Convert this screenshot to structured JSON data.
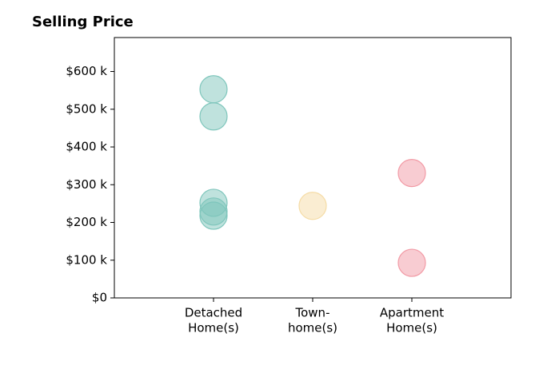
{
  "chart_data": {
    "type": "strip",
    "title": "Selling Price",
    "categories": [
      [
        "Detached",
        "Home(s)"
      ],
      [
        "Town-",
        "home(s)"
      ],
      [
        "Apartment",
        "Home(s)"
      ]
    ],
    "values": [
      [
        553000,
        481000,
        252000,
        229000,
        218000
      ],
      [
        244000
      ],
      [
        331000,
        93000
      ]
    ],
    "colors": [
      "#7fc6bc",
      "#f5dca6",
      "#f29aa5"
    ],
    "ylim": [
      0,
      690000
    ],
    "yticks": [
      {
        "value": 0,
        "label": "$0"
      },
      {
        "value": 100000,
        "label": "$100 k"
      },
      {
        "value": 200000,
        "label": "$200 k"
      },
      {
        "value": 300000,
        "label": "$300 k"
      },
      {
        "value": 400000,
        "label": "$400 k"
      },
      {
        "value": 500000,
        "label": "$500 k"
      },
      {
        "value": 600000,
        "label": "$600 k"
      }
    ],
    "grid": false
  }
}
